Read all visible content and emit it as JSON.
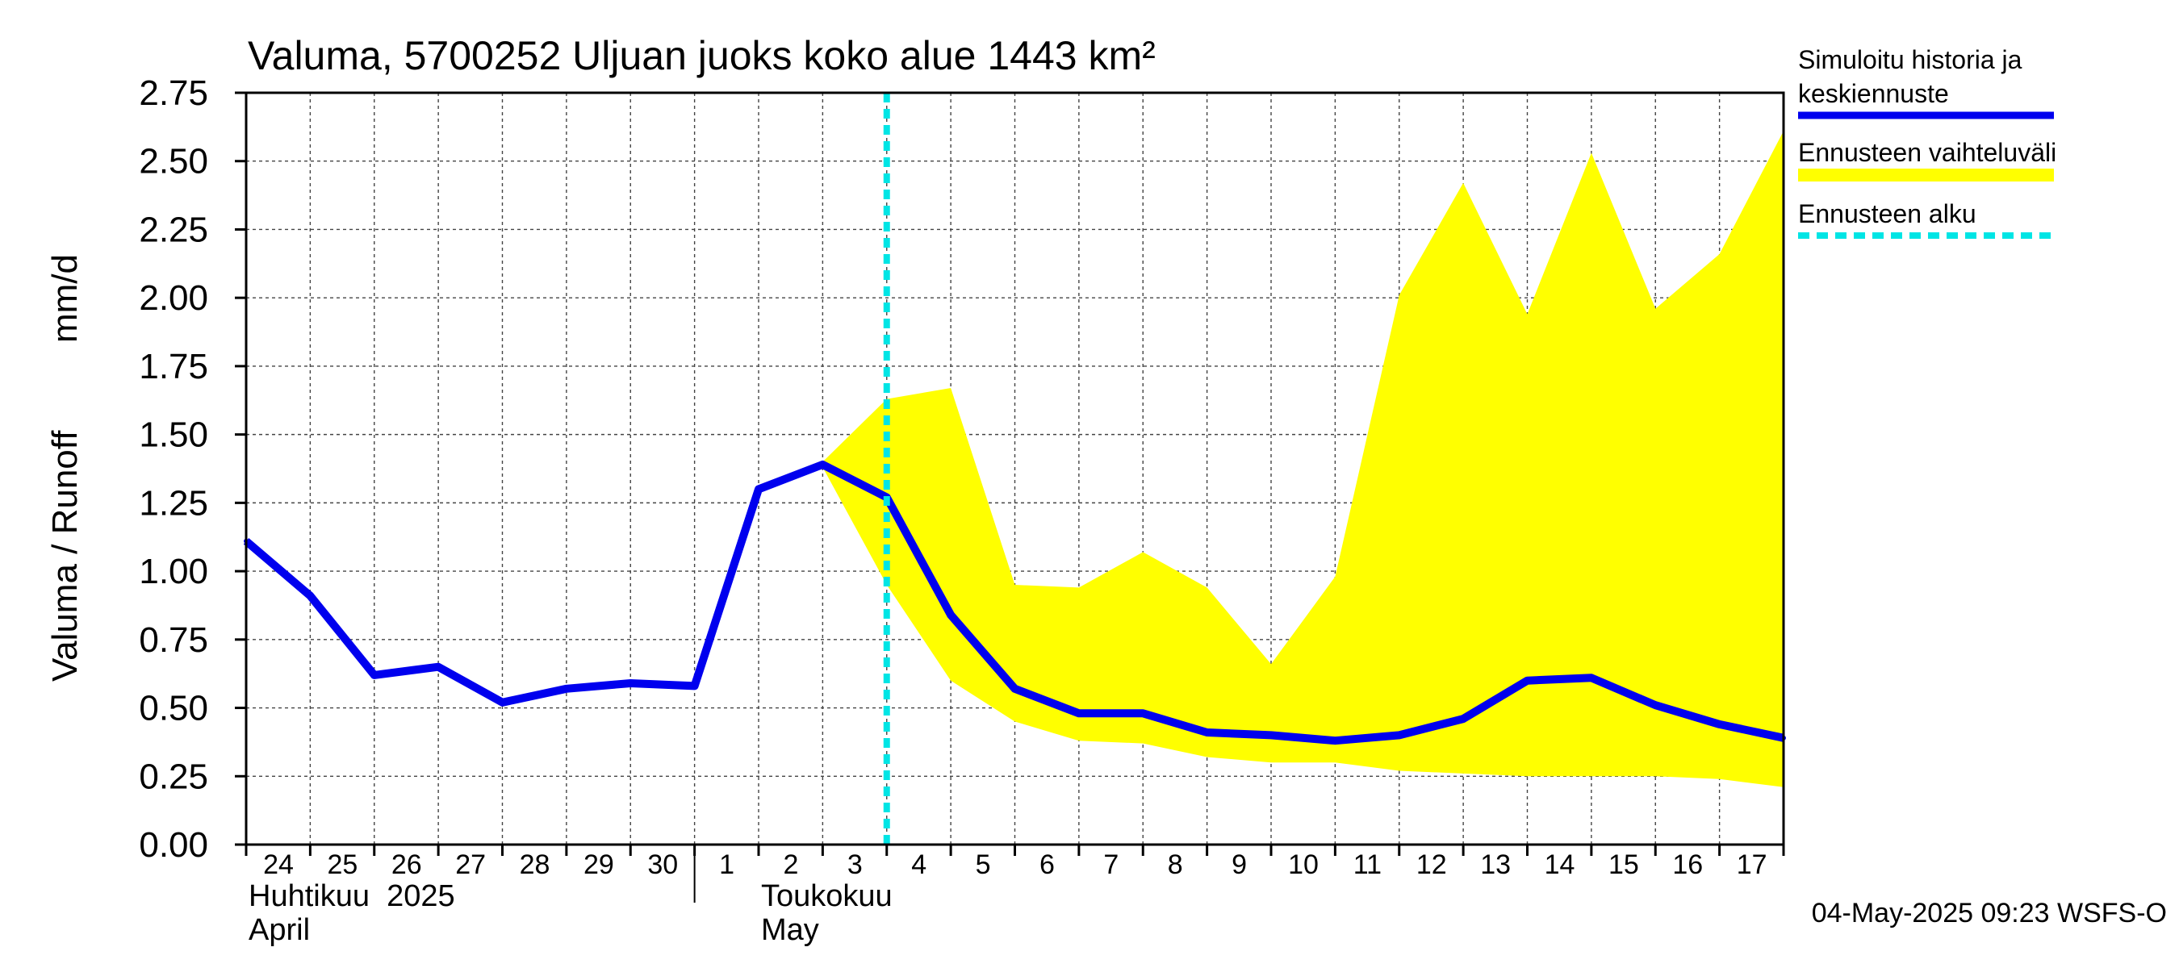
{
  "chart_data": {
    "type": "line",
    "title": "Valuma, 5700252 Uljuan juoks koko alue 1443 km²",
    "ylabel_left": "Valuma / Runoff",
    "ylabel_unit": "mm/d",
    "ylim": [
      0,
      2.75
    ],
    "yticks": [
      "0.00",
      "0.25",
      "0.50",
      "0.75",
      "1.00",
      "1.25",
      "1.50",
      "1.75",
      "2.00",
      "2.25",
      "2.50",
      "2.75"
    ],
    "x_start": 0,
    "x_end": 24,
    "day_labels": [
      {
        "x": 0,
        "label": "24"
      },
      {
        "x": 1,
        "label": "25"
      },
      {
        "x": 2,
        "label": "26"
      },
      {
        "x": 3,
        "label": "27"
      },
      {
        "x": 4,
        "label": "28"
      },
      {
        "x": 5,
        "label": "29"
      },
      {
        "x": 6,
        "label": "30"
      },
      {
        "x": 7,
        "label": "1"
      },
      {
        "x": 8,
        "label": "2"
      },
      {
        "x": 9,
        "label": "3"
      },
      {
        "x": 10,
        "label": "4"
      },
      {
        "x": 11,
        "label": "5"
      },
      {
        "x": 12,
        "label": "6"
      },
      {
        "x": 13,
        "label": "7"
      },
      {
        "x": 14,
        "label": "8"
      },
      {
        "x": 15,
        "label": "9"
      },
      {
        "x": 16,
        "label": "10"
      },
      {
        "x": 17,
        "label": "11"
      },
      {
        "x": 18,
        "label": "12"
      },
      {
        "x": 19,
        "label": "13"
      },
      {
        "x": 20,
        "label": "14"
      },
      {
        "x": 21,
        "label": "15"
      },
      {
        "x": 22,
        "label": "16"
      },
      {
        "x": 23,
        "label": "17"
      }
    ],
    "month_labels": [
      {
        "x": 0,
        "line1": "Huhtikuu  2025",
        "line2": "April"
      },
      {
        "x": 8,
        "line1": "Toukokuu",
        "line2": "May"
      }
    ],
    "month_divider_x": 7,
    "forecast_start_x": 10,
    "series": [
      {
        "name": "Simuloitu historia ja keskiennuste",
        "color": "#0000ee",
        "x": [
          0,
          1,
          2,
          3,
          4,
          5,
          6,
          7,
          8,
          9,
          10,
          11,
          12,
          13,
          14,
          15,
          16,
          17,
          18,
          19,
          20,
          21,
          22,
          23,
          24
        ],
        "values": [
          1.11,
          0.91,
          0.62,
          0.65,
          0.52,
          0.57,
          0.59,
          0.58,
          1.3,
          1.39,
          1.27,
          0.84,
          0.57,
          0.48,
          0.48,
          0.41,
          0.4,
          0.38,
          0.4,
          0.46,
          0.6,
          0.61,
          0.51,
          0.44,
          0.39
        ]
      }
    ],
    "band": {
      "name": "Ennusteen vaihteluväli",
      "color": "#ffff00",
      "x": [
        9,
        10,
        11,
        12,
        13,
        14,
        15,
        16,
        17,
        18,
        19,
        20,
        21,
        22,
        23,
        24
      ],
      "upper": [
        1.4,
        1.63,
        1.67,
        0.95,
        0.94,
        1.07,
        0.94,
        0.66,
        0.98,
        2.01,
        2.42,
        1.94,
        2.53,
        1.96,
        2.16,
        2.61
      ],
      "lower": [
        1.38,
        0.95,
        0.6,
        0.45,
        0.38,
        0.37,
        0.32,
        0.3,
        0.3,
        0.27,
        0.26,
        0.25,
        0.25,
        0.25,
        0.24,
        0.21
      ]
    },
    "legend": [
      {
        "line1": "Simuloitu historia ja",
        "line2": "keskiennuste",
        "color": "#0000ee",
        "style": "solid"
      },
      {
        "line1": "Ennusteen vaihteluväli",
        "line2": "",
        "color": "#ffff00",
        "style": "thick"
      },
      {
        "line1": "Ennusteen alku",
        "line2": "",
        "color": "#00e5e5",
        "style": "dashed"
      }
    ],
    "legend_placement": "right",
    "timestamp": "04-May-2025 09:23 WSFS-O",
    "grid": true
  }
}
